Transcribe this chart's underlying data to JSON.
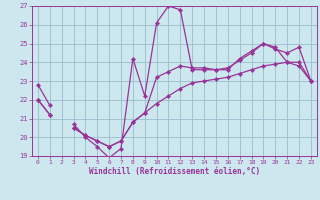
{
  "xlabel": "Windchill (Refroidissement éolien,°C)",
  "bg_color": "#cce8ee",
  "line_color": "#993399",
  "grid_color": "#99bbcc",
  "hours": [
    0,
    1,
    2,
    3,
    4,
    5,
    6,
    7,
    8,
    9,
    10,
    11,
    12,
    13,
    14,
    15,
    16,
    17,
    18,
    19,
    20,
    21,
    22,
    23
  ],
  "line1_y": [
    22.8,
    21.7,
    null,
    20.7,
    20.0,
    19.5,
    18.9,
    19.4,
    24.2,
    22.2,
    26.1,
    27.0,
    26.8,
    23.6,
    23.6,
    23.6,
    23.6,
    24.2,
    24.6,
    25.0,
    24.8,
    24.0,
    23.8,
    23.0
  ],
  "line2_y": [
    22.0,
    21.2,
    null,
    20.5,
    20.1,
    19.8,
    19.5,
    19.8,
    20.8,
    21.3,
    21.8,
    22.2,
    22.6,
    22.9,
    23.0,
    23.1,
    23.2,
    23.4,
    23.6,
    23.8,
    23.9,
    24.0,
    24.0,
    23.0
  ],
  "line3_y": [
    22.0,
    21.2,
    null,
    20.5,
    20.1,
    19.8,
    19.5,
    19.8,
    20.8,
    21.3,
    23.2,
    23.5,
    23.8,
    23.7,
    23.7,
    23.6,
    23.7,
    24.1,
    24.5,
    25.0,
    24.7,
    24.5,
    24.8,
    23.0
  ],
  "ylim": [
    19,
    27
  ],
  "xlim": [
    -0.5,
    23.5
  ],
  "yticks": [
    19,
    20,
    21,
    22,
    23,
    24,
    25,
    26,
    27
  ],
  "xticks": [
    0,
    1,
    2,
    3,
    4,
    5,
    6,
    7,
    8,
    9,
    10,
    11,
    12,
    13,
    14,
    15,
    16,
    17,
    18,
    19,
    20,
    21,
    22,
    23
  ]
}
